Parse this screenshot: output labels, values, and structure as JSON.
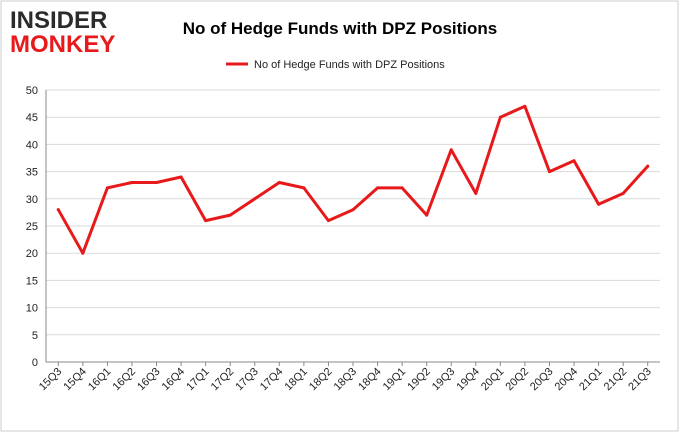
{
  "logo": {
    "line1": "INSIDER",
    "line2": "MONKEY"
  },
  "colors": {
    "line": "#e8191b",
    "grid": "#d9d9d9",
    "axis": "#888888",
    "logo_dark": "#2b2b2b",
    "logo_red": "#e8191b",
    "frame_border": "#cccccc"
  },
  "chart_data": {
    "type": "line",
    "title": "No of Hedge Funds with DPZ Positions",
    "xlabel": "",
    "ylabel": "",
    "ylim": [
      0,
      50
    ],
    "yticks": [
      0,
      5,
      10,
      15,
      20,
      25,
      30,
      35,
      40,
      45,
      50
    ],
    "grid": true,
    "legend_position": "top-center",
    "categories": [
      "15Q3",
      "15Q4",
      "16Q1",
      "16Q2",
      "16Q3",
      "16Q4",
      "17Q1",
      "17Q2",
      "17Q3",
      "17Q4",
      "18Q1",
      "18Q2",
      "18Q3",
      "18Q4",
      "19Q1",
      "19Q2",
      "19Q3",
      "19Q4",
      "20Q1",
      "20Q2",
      "20Q3",
      "20Q4",
      "21Q1",
      "21Q2",
      "21Q3"
    ],
    "series": [
      {
        "name": "No of Hedge Funds with DPZ Positions",
        "values": [
          28,
          20,
          32,
          33,
          33,
          34,
          26,
          27,
          30,
          33,
          32,
          26,
          28,
          32,
          32,
          27,
          39,
          31,
          45,
          47,
          35,
          37,
          29,
          31,
          36
        ]
      }
    ]
  }
}
